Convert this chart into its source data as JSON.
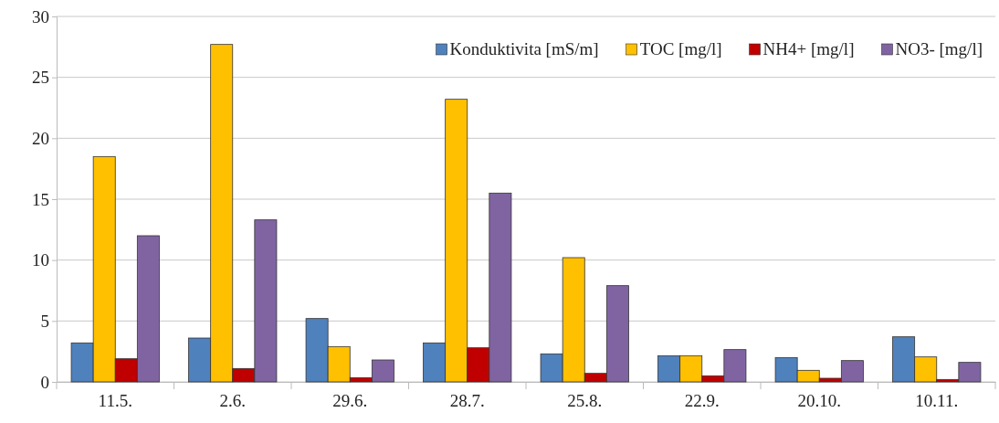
{
  "chart_data": {
    "type": "bar",
    "categories": [
      "11.5.",
      "2.6.",
      "29.6.",
      "28.7.",
      "25.8.",
      "22.9.",
      "20.10.",
      "10.11."
    ],
    "series": [
      {
        "name": "Konduktivita [mS/m]",
        "color": "#4f81bd",
        "values": [
          3.2,
          3.6,
          5.2,
          3.2,
          2.3,
          2.15,
          2.0,
          3.7
        ]
      },
      {
        "name": "TOC [mg/l]",
        "color": "#ffc000",
        "values": [
          18.5,
          27.7,
          2.9,
          23.2,
          10.2,
          2.15,
          0.95,
          2.05
        ]
      },
      {
        "name": "NH4+ [mg/l]",
        "color": "#c00000",
        "values": [
          1.9,
          1.1,
          0.35,
          2.8,
          0.7,
          0.5,
          0.3,
          0.2
        ]
      },
      {
        "name": "NO3- [mg/l]",
        "color": "#8064a2",
        "values": [
          12.0,
          13.3,
          1.8,
          15.5,
          7.9,
          2.65,
          1.75,
          1.6
        ]
      }
    ],
    "ylim": [
      0,
      30
    ],
    "yticks": [
      0,
      5,
      10,
      15,
      20,
      25,
      30
    ],
    "grid": "y",
    "legend": "top right"
  }
}
